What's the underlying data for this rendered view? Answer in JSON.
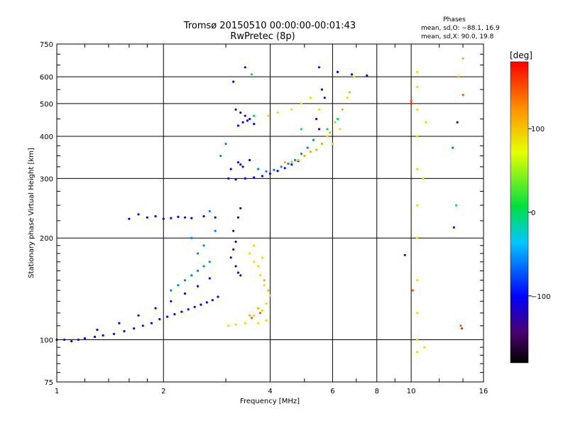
{
  "chart_data": {
    "type": "scatter",
    "title": "Tromsø 20150510 00:00:00-00:01:43",
    "subtitle": "RwPretec (8p)",
    "xlabel": "Frequency [MHz]",
    "ylabel": "Stationary phase Virtual Height [km]",
    "x_scale": "log",
    "y_scale": "log",
    "xlim": [
      1,
      16
    ],
    "ylim": [
      75,
      750
    ],
    "x_ticks": [
      1,
      2,
      4,
      6,
      8,
      10,
      16
    ],
    "y_ticks": [
      75,
      100,
      200,
      300,
      400,
      500,
      600,
      750
    ],
    "grid": true,
    "phases": {
      "title": "Phases",
      "line_o": "mean, sd,O: −88.1, 16.9",
      "line_x": "mean, sd,X:  90.0, 19.8"
    },
    "colorbar": {
      "label": "[deg]",
      "range": [
        -180,
        180
      ],
      "ticks": [
        100,
        0,
        -100
      ]
    },
    "series": [
      {
        "phase_deg": -100,
        "points": [
          [
            1.0,
            100
          ],
          [
            1.05,
            100
          ],
          [
            1.1,
            99
          ],
          [
            1.15,
            100
          ],
          [
            1.2,
            101
          ],
          [
            1.28,
            102
          ],
          [
            1.35,
            103
          ],
          [
            1.45,
            104
          ],
          [
            1.55,
            106
          ],
          [
            1.65,
            108
          ],
          [
            1.75,
            110
          ],
          [
            1.85,
            112
          ],
          [
            1.95,
            115
          ],
          [
            2.05,
            117
          ],
          [
            2.15,
            119
          ],
          [
            2.25,
            121
          ],
          [
            2.35,
            123
          ],
          [
            2.45,
            125
          ],
          [
            2.55,
            127
          ],
          [
            2.65,
            129
          ],
          [
            2.75,
            131
          ],
          [
            2.85,
            134
          ],
          [
            1.3,
            107
          ],
          [
            1.5,
            112
          ],
          [
            1.7,
            118
          ],
          [
            1.9,
            124
          ],
          [
            2.1,
            130
          ],
          [
            2.3,
            137
          ],
          [
            2.5,
            144
          ],
          [
            2.7,
            152
          ],
          [
            1.6,
            228
          ],
          [
            1.7,
            235
          ],
          [
            1.8,
            230
          ],
          [
            1.9,
            232
          ],
          [
            2.0,
            228
          ],
          [
            2.1,
            229
          ],
          [
            2.2,
            231
          ],
          [
            2.3,
            230
          ],
          [
            2.4,
            229
          ],
          [
            2.6,
            232
          ],
          [
            2.8,
            230
          ],
          [
            3.05,
            300
          ],
          [
            3.2,
            298
          ],
          [
            3.4,
            300
          ],
          [
            3.6,
            302
          ],
          [
            3.8,
            305
          ],
          [
            4.0,
            310
          ],
          [
            4.2,
            316
          ],
          [
            4.4,
            322
          ],
          [
            4.6,
            330
          ],
          [
            4.8,
            338
          ],
          [
            3.1,
            320
          ],
          [
            3.3,
            330
          ],
          [
            3.5,
            340
          ],
          [
            3.25,
            430
          ],
          [
            3.35,
            440
          ],
          [
            3.45,
            445
          ],
          [
            3.5,
            450
          ],
          [
            3.6,
            435
          ],
          [
            3.15,
            580
          ],
          [
            3.4,
            640
          ],
          [
            5.5,
            640
          ],
          [
            6.2,
            620
          ],
          [
            6.8,
            610
          ],
          [
            7.5,
            605
          ],
          [
            13.2,
            215
          ]
        ]
      },
      {
        "phase_deg": -130,
        "points": [
          [
            3.1,
            175
          ],
          [
            3.15,
            185
          ],
          [
            3.2,
            165
          ],
          [
            3.25,
            158
          ],
          [
            3.3,
            155
          ],
          [
            3.2,
            195
          ],
          [
            3.15,
            210
          ],
          [
            3.25,
            230
          ],
          [
            3.3,
            245
          ],
          [
            3.2,
            480
          ],
          [
            3.3,
            470
          ],
          [
            3.4,
            460
          ],
          [
            3.25,
            335
          ],
          [
            3.35,
            325
          ],
          [
            5.6,
            550
          ],
          [
            5.7,
            520
          ],
          [
            5.4,
            450
          ],
          [
            5.5,
            420
          ],
          [
            9.6,
            178
          ],
          [
            13.5,
            440
          ]
        ]
      },
      {
        "phase_deg": -60,
        "points": [
          [
            2.1,
            140
          ],
          [
            2.2,
            145
          ],
          [
            2.3,
            150
          ],
          [
            2.4,
            155
          ],
          [
            2.5,
            160
          ],
          [
            2.6,
            165
          ],
          [
            2.7,
            170
          ],
          [
            2.5,
            180
          ],
          [
            2.6,
            190
          ],
          [
            2.4,
            200
          ],
          [
            2.8,
            210
          ],
          [
            2.7,
            240
          ],
          [
            2.9,
            350
          ],
          [
            3.0,
            380
          ],
          [
            3.7,
            320
          ],
          [
            3.9,
            315
          ],
          [
            4.1,
            318
          ],
          [
            4.3,
            325
          ],
          [
            4.5,
            332
          ],
          [
            4.7,
            340
          ],
          [
            4.9,
            355
          ],
          [
            5.1,
            370
          ],
          [
            5.3,
            390
          ],
          [
            13.1,
            370
          ]
        ]
      },
      {
        "phase_deg": 0,
        "points": [
          [
            3.6,
            460
          ],
          [
            4.9,
            420
          ],
          [
            5.6,
            380
          ],
          [
            5.8,
            420
          ],
          [
            6.2,
            450
          ],
          [
            3.55,
            610
          ],
          [
            13.4,
            250
          ]
        ]
      },
      {
        "phase_deg": 90,
        "points": [
          [
            3.05,
            110
          ],
          [
            3.2,
            111
          ],
          [
            3.4,
            112
          ],
          [
            3.6,
            118
          ],
          [
            3.8,
            122
          ],
          [
            3.9,
            128
          ],
          [
            4.0,
            135
          ],
          [
            3.85,
            145
          ],
          [
            3.75,
            155
          ],
          [
            3.7,
            165
          ],
          [
            3.8,
            175
          ],
          [
            3.6,
            170
          ],
          [
            3.5,
            180
          ],
          [
            3.6,
            190
          ],
          [
            3.95,
            460
          ],
          [
            4.2,
            470
          ],
          [
            4.6,
            480
          ],
          [
            4.9,
            500
          ],
          [
            5.2,
            520
          ],
          [
            5.5,
            480
          ],
          [
            5.8,
            400
          ],
          [
            6.0,
            380
          ],
          [
            6.3,
            420
          ],
          [
            6.6,
            520
          ],
          [
            6.9,
            600
          ],
          [
            10.4,
            620
          ],
          [
            10.4,
            560
          ],
          [
            10.4,
            480
          ],
          [
            10.4,
            400
          ],
          [
            10.4,
            320
          ],
          [
            10.4,
            250
          ],
          [
            10.4,
            200
          ],
          [
            10.4,
            150
          ],
          [
            10.4,
            120
          ],
          [
            10.4,
            100
          ],
          [
            10.9,
            95
          ],
          [
            10.4,
            92
          ],
          [
            3.7,
            112
          ],
          [
            3.9,
            114
          ],
          [
            11.0,
            440
          ],
          [
            10.8,
            300
          ]
        ]
      },
      {
        "phase_deg": 110,
        "points": [
          [
            3.5,
            118
          ],
          [
            3.7,
            124
          ],
          [
            3.95,
            140
          ],
          [
            3.85,
            150
          ],
          [
            4.4,
            335
          ],
          [
            4.6,
            336
          ],
          [
            4.8,
            340
          ],
          [
            5.0,
            350
          ],
          [
            5.2,
            360
          ],
          [
            5.4,
            365
          ],
          [
            5.6,
            380
          ],
          [
            5.9,
            410
          ],
          [
            6.1,
            440
          ],
          [
            6.4,
            480
          ],
          [
            6.7,
            540
          ],
          [
            14.0,
            680
          ],
          [
            13.6,
            600
          ]
        ]
      },
      {
        "phase_deg": 150,
        "points": [
          [
            3.55,
            116
          ],
          [
            3.75,
            120
          ],
          [
            14.0,
            530
          ],
          [
            10.0,
            510
          ],
          [
            10.1,
            140
          ],
          [
            13.8,
            110
          ]
        ]
      },
      {
        "phase_deg": 170,
        "points": [
          [
            10.0,
            500
          ],
          [
            13.9,
            108
          ]
        ]
      }
    ]
  }
}
